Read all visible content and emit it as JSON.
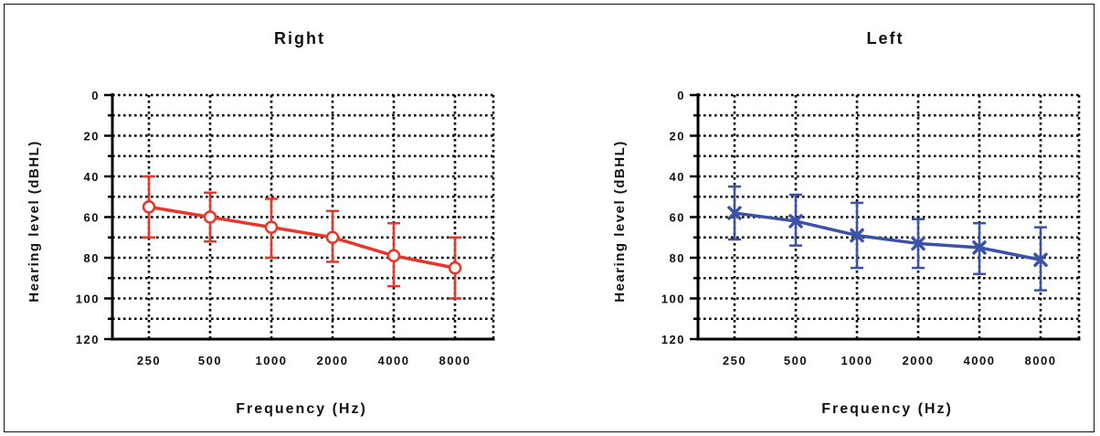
{
  "colors": {
    "right": "#e8362a",
    "left": "#3b52a8",
    "axis": "#000000"
  },
  "chart_data": [
    {
      "type": "line",
      "title": "Right",
      "xlabel": "Frequency (Hz)",
      "ylabel": "Hearing level (dBHL)",
      "categories": [
        "250",
        "500",
        "1000",
        "2000",
        "4000",
        "8000"
      ],
      "yticks": [
        "0",
        "20",
        "40",
        "60",
        "80",
        "100",
        "120"
      ],
      "ylim": [
        0,
        120
      ],
      "y_inverted": true,
      "grid": true,
      "marker": "circle",
      "color_key": "right",
      "series": [
        {
          "values": [
            55,
            60,
            65,
            70,
            79,
            85
          ],
          "error_low": [
            70,
            72,
            80,
            82,
            94,
            100
          ],
          "error_high": [
            40,
            48,
            51,
            57,
            63,
            70
          ]
        }
      ]
    },
    {
      "type": "line",
      "title": "Left",
      "xlabel": "Frequency (Hz)",
      "ylabel": "Hearing level (dBHL)",
      "categories": [
        "250",
        "500",
        "1000",
        "2000",
        "4000",
        "8000"
      ],
      "yticks": [
        "0",
        "20",
        "40",
        "60",
        "80",
        "100",
        "120"
      ],
      "ylim": [
        0,
        120
      ],
      "y_inverted": true,
      "grid": true,
      "marker": "x",
      "color_key": "left",
      "series": [
        {
          "values": [
            58,
            62,
            69,
            73,
            75,
            81
          ],
          "error_low": [
            71,
            74,
            85,
            85,
            88,
            96
          ],
          "error_high": [
            45,
            49,
            53,
            61,
            63,
            65
          ]
        }
      ]
    }
  ]
}
